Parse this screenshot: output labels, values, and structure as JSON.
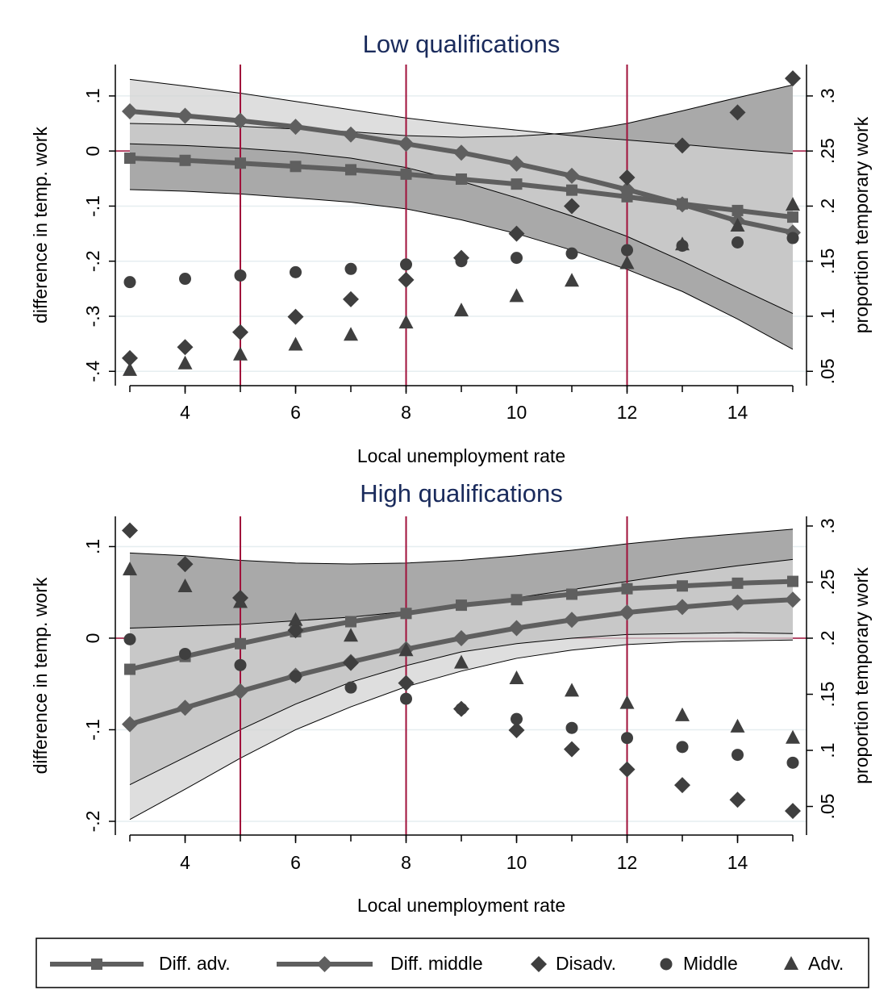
{
  "chart_data": [
    {
      "type": "line",
      "title": "Low qualifications",
      "xlabel": "Local unemployment rate",
      "ylabel": "difference in temp. work",
      "y2label": "proportion temporary work",
      "x": [
        3,
        4,
        5,
        6,
        7,
        8,
        9,
        10,
        11,
        12,
        13,
        14,
        15
      ],
      "xlim": [
        2.737,
        15.248
      ],
      "xticks": [
        4,
        6,
        8,
        10,
        12,
        14
      ],
      "ylim": [
        -0.426,
        0.157
      ],
      "yticks": [
        {
          "value": -0.4,
          "label": "-.4"
        },
        {
          "value": -0.3,
          "label": "-.3"
        },
        {
          "value": -0.2,
          "label": "-.2"
        },
        {
          "value": -0.1,
          "label": "-.1"
        },
        0,
        {
          "value": 0.1,
          "label": ".1"
        }
      ],
      "y2lim": [
        0.037,
        0.3285
      ],
      "y2ticks": [
        {
          "value": 0.05,
          "label": ".05"
        },
        {
          "value": 0.1,
          "label": ".1"
        },
        {
          "value": 0.15,
          "label": ".15"
        },
        {
          "value": 0.2,
          "label": ".2"
        },
        {
          "value": 0.25,
          "label": ".25"
        },
        {
          "value": 0.3,
          "label": ".3"
        }
      ],
      "grid": true,
      "xlines": [
        5,
        8,
        12
      ],
      "ylines": [
        0
      ],
      "refline_color": "#a0103a",
      "series": [
        {
          "name": "Diff. adv.",
          "color": "#5f5f5f",
          "marker": "square",
          "line": true,
          "axis": "y",
          "band_color": "#a9a9a9",
          "values": [
            -0.013,
            -0.017,
            -0.022,
            -0.028,
            -0.034,
            -0.042,
            -0.051,
            -0.06,
            -0.071,
            -0.083,
            -0.096,
            -0.108,
            -0.12
          ],
          "upper": [
            0.05,
            0.048,
            0.045,
            0.04,
            0.035,
            0.028,
            0.025,
            0.027,
            0.033,
            0.05,
            0.073,
            0.097,
            0.12
          ],
          "lower": [
            -0.07,
            -0.073,
            -0.078,
            -0.085,
            -0.093,
            -0.105,
            -0.125,
            -0.15,
            -0.18,
            -0.215,
            -0.255,
            -0.305,
            -0.36
          ]
        },
        {
          "name": "Diff. middle",
          "color": "#5f5f5f",
          "marker": "diamond",
          "line": true,
          "axis": "y",
          "band_color": "#d3d3d3",
          "values": [
            0.072,
            0.064,
            0.055,
            0.044,
            0.03,
            0.013,
            -0.003,
            -0.023,
            -0.045,
            -0.07,
            -0.097,
            -0.127,
            -0.148
          ],
          "upper": [
            0.13,
            0.118,
            0.105,
            0.09,
            0.075,
            0.06,
            0.048,
            0.038,
            0.028,
            0.02,
            0.012,
            0.003,
            -0.005
          ],
          "lower": [
            0.013,
            0.01,
            0.005,
            -0.002,
            -0.013,
            -0.03,
            -0.055,
            -0.085,
            -0.118,
            -0.155,
            -0.2,
            -0.248,
            -0.295
          ]
        },
        {
          "name": "Disadv.",
          "color": "#3f3f3f",
          "marker": "diamond",
          "line": false,
          "axis": "y2",
          "values": [
            0.062,
            0.072,
            0.0855,
            0.0995,
            0.1155,
            0.133,
            0.153,
            0.175,
            0.2,
            0.226,
            0.255,
            0.285,
            0.316
          ]
        },
        {
          "name": "Middle",
          "color": "#3f3f3f",
          "marker": "circle",
          "line": false,
          "axis": "y2",
          "values": [
            0.131,
            0.134,
            0.137,
            0.14,
            0.143,
            0.147,
            0.15,
            0.153,
            0.157,
            0.16,
            0.164,
            0.167,
            0.171
          ]
        },
        {
          "name": "Adv.",
          "color": "#3f3f3f",
          "marker": "triangle",
          "line": false,
          "axis": "y2",
          "values": [
            0.051,
            0.057,
            0.065,
            0.074,
            0.083,
            0.094,
            0.105,
            0.118,
            0.132,
            0.148,
            0.165,
            0.182,
            0.201
          ]
        }
      ]
    },
    {
      "type": "line",
      "title": "High qualifications",
      "xlabel": "Local unemployment rate",
      "ylabel": "difference in temp. work",
      "y2label": "proportion temporary work",
      "x": [
        3,
        4,
        5,
        6,
        7,
        8,
        9,
        10,
        11,
        12,
        13,
        14,
        15
      ],
      "xlim": [
        2.737,
        15.248
      ],
      "xticks": [
        4,
        6,
        8,
        10,
        12,
        14
      ],
      "ylim": [
        -0.215,
        0.133
      ],
      "yticks": [
        {
          "value": -0.2,
          "label": "-.2"
        },
        {
          "value": -0.1,
          "label": "-.1"
        },
        0,
        {
          "value": 0.1,
          "label": ".1"
        }
      ],
      "y2lim": [
        0.0245,
        0.3086
      ],
      "y2ticks": [
        {
          "value": 0.05,
          "label": ".05"
        },
        {
          "value": 0.1,
          "label": ".1"
        },
        {
          "value": 0.15,
          "label": ".15"
        },
        {
          "value": 0.2,
          "label": ".2"
        },
        {
          "value": 0.25,
          "label": ".25"
        },
        {
          "value": 0.3,
          "label": ".3"
        }
      ],
      "grid": true,
      "xlines": [
        5,
        8,
        12
      ],
      "ylines": [
        0
      ],
      "refline_color": "#a0103a",
      "series": [
        {
          "color": "#5f5f5f",
          "marker": "square",
          "line": true,
          "axis": "y",
          "band_color": "#a9a9a9",
          "values": [
            -0.034,
            -0.02,
            -0.006,
            0.007,
            0.018,
            0.027,
            0.036,
            0.042,
            0.048,
            0.054,
            0.057,
            0.06,
            0.062
          ],
          "upper": [
            0.093,
            0.09,
            0.085,
            0.082,
            0.081,
            0.082,
            0.085,
            0.09,
            0.096,
            0.103,
            0.109,
            0.114,
            0.119
          ],
          "lower": [
            -0.16,
            -0.13,
            -0.1,
            -0.072,
            -0.048,
            -0.03,
            -0.015,
            -0.006,
            0,
            0.004,
            0.005,
            0.006,
            0.005
          ]
        },
        {
          "color": "#5f5f5f",
          "marker": "diamond",
          "line": true,
          "axis": "y",
          "band_color": "#d3d3d3",
          "values": [
            -0.094,
            -0.076,
            -0.058,
            -0.041,
            -0.026,
            -0.012,
            0,
            0.011,
            0.02,
            0.028,
            0.034,
            0.039,
            0.042
          ],
          "upper": [
            0.011,
            0.013,
            0.015,
            0.019,
            0.023,
            0.029,
            0.036,
            0.044,
            0.053,
            0.062,
            0.071,
            0.079,
            0.086
          ],
          "lower": [
            -0.198,
            -0.165,
            -0.131,
            -0.1,
            -0.075,
            -0.053,
            -0.036,
            -0.022,
            -0.013,
            -0.007,
            -0.004,
            -0.003,
            -0.002
          ]
        },
        {
          "color": "#3f3f3f",
          "marker": "diamond",
          "line": false,
          "axis": "y2",
          "values": [
            0.296,
            0.266,
            0.236,
            0.207,
            0.178,
            0.16,
            0.137,
            0.118,
            0.101,
            0.083,
            0.069,
            0.056,
            0.046
          ]
        },
        {
          "color": "#3f3f3f",
          "marker": "circle",
          "line": false,
          "axis": "y2",
          "values": [
            0.199,
            0.186,
            0.176,
            0.166,
            0.156,
            0.146,
            0.137,
            0.128,
            0.12,
            0.111,
            0.103,
            0.096,
            0.089
          ]
        },
        {
          "color": "#3f3f3f",
          "marker": "triangle",
          "line": false,
          "axis": "y2",
          "values": [
            0.261,
            0.246,
            0.232,
            0.216,
            0.202,
            0.189,
            0.178,
            0.164,
            0.153,
            0.142,
            0.131,
            0.121,
            0.111
          ]
        }
      ]
    }
  ]
}
